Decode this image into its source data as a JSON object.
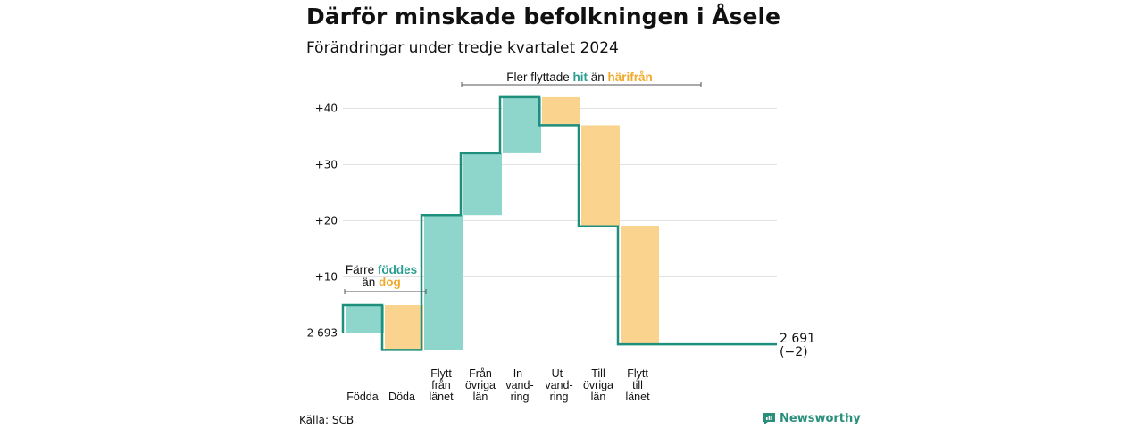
{
  "header": {
    "title": "Därför minskade befolkningen i Åsele",
    "subtitle": "Förändringar under tredje kvartalet 2024"
  },
  "footer": {
    "source": "Källa: SCB",
    "brand": "Newsworthy"
  },
  "colors": {
    "increase": "#8ed5cc",
    "decrease": "#fad48f",
    "line": "#1e8f7c",
    "highlight_in": "#2a9d8f",
    "highlight_out": "#f0a92b",
    "grid": "#e2e2e2"
  },
  "annotations": {
    "natural": {
      "line1_a": "Färre ",
      "line1_b": "föddes",
      "line2_a": "än ",
      "line2_b": "dog"
    },
    "migration": {
      "a": "Fler flyttade ",
      "b": "hit",
      "c": " än ",
      "d": "härifrån"
    }
  },
  "end_label": {
    "value": "2 691",
    "change": "(−2)"
  },
  "chart_data": {
    "type": "waterfall",
    "title": "Därför minskade befolkningen i Åsele",
    "subtitle": "Förändringar under tredje kvartalet 2024",
    "start": {
      "label": "2 693",
      "value": 2693
    },
    "end": {
      "label": "2 691",
      "value": 2691,
      "change": -2
    },
    "y_ticks": [
      "2 693",
      "+10",
      "+20",
      "+30",
      "+40"
    ],
    "y_tick_values": [
      0,
      10,
      20,
      30,
      40
    ],
    "ylim": [
      -3,
      43
    ],
    "grid": true,
    "categories": [
      {
        "label": [
          "Födda"
        ],
        "change": 5
      },
      {
        "label": [
          "Döda"
        ],
        "change": -8
      },
      {
        "label": [
          "Flytt",
          "från",
          "länet"
        ],
        "change": 24
      },
      {
        "label": [
          "Från",
          "övriga",
          "län"
        ],
        "change": 11
      },
      {
        "label": [
          "In-",
          "vand-",
          "ring"
        ],
        "change": 10
      },
      {
        "label": [
          "Ut-",
          "vand-",
          "ring"
        ],
        "change": -5
      },
      {
        "label": [
          "Till",
          "övriga",
          "län"
        ],
        "change": -18
      },
      {
        "label": [
          "Flytt",
          "till",
          "länet"
        ],
        "change": -21
      }
    ]
  }
}
